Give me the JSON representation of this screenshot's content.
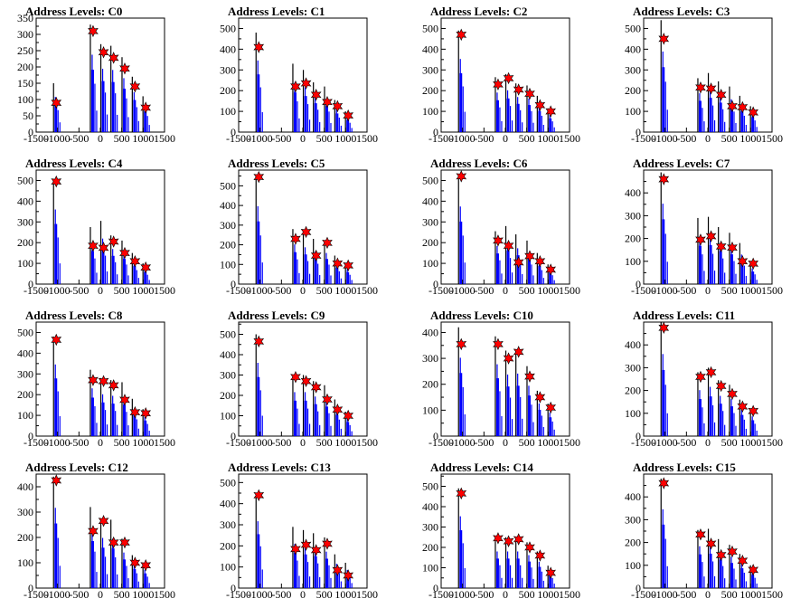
{
  "chart_data": {
    "type": "bar",
    "panel_count": 16,
    "xlim": [
      -1500,
      1500
    ],
    "x_tick_labels": [
      "-1500",
      "-1000",
      "-500",
      "0",
      "500",
      "1000",
      "1500"
    ],
    "colors": {
      "histogram_fill": "#0000ff",
      "histogram_outline": "#000000",
      "marker": "#ff0000"
    },
    "marker_shape": "star",
    "panels": [
      {
        "title": "Address Levels: C0",
        "ylim": [
          0,
          350
        ],
        "y_tick_labels": [
          "0",
          "50",
          "100",
          "150",
          "200",
          "250",
          "300",
          "350"
        ],
        "peak_x": [
          -1030,
          -170,
          75,
          310,
          570,
          810,
          1060
        ],
        "peak_y": [
          150,
          330,
          270,
          265,
          230,
          170,
          110
        ],
        "markers": [
          [
            -1030,
            90
          ],
          [
            -170,
            310
          ],
          [
            75,
            245
          ],
          [
            310,
            228
          ],
          [
            570,
            195
          ],
          [
            810,
            140
          ],
          [
            1060,
            75
          ]
        ]
      },
      {
        "title": "Address Levels: C1",
        "ylim": [
          0,
          550
        ],
        "y_tick_labels": [
          "0",
          "100",
          "200",
          "300",
          "400",
          "500"
        ],
        "peak_x": [
          -1030,
          -170,
          75,
          310,
          570,
          810,
          1060
        ],
        "peak_y": [
          480,
          330,
          300,
          240,
          220,
          155,
          100
        ],
        "markers": [
          [
            -1030,
            410
          ],
          [
            -170,
            220
          ],
          [
            75,
            235
          ],
          [
            310,
            180
          ],
          [
            570,
            145
          ],
          [
            810,
            125
          ],
          [
            1060,
            80
          ]
        ]
      },
      {
        "title": "Address Levels: C2",
        "ylim": [
          0,
          550
        ],
        "y_tick_labels": [
          "0",
          "100",
          "200",
          "300",
          "400",
          "500"
        ],
        "peak_x": [
          -1030,
          -170,
          75,
          310,
          570,
          810,
          1060
        ],
        "peak_y": [
          490,
          265,
          280,
          235,
          225,
          175,
          115
        ],
        "markers": [
          [
            -1030,
            470
          ],
          [
            -170,
            230
          ],
          [
            75,
            260
          ],
          [
            310,
            205
          ],
          [
            570,
            185
          ],
          [
            810,
            130
          ],
          [
            1060,
            100
          ]
        ]
      },
      {
        "title": "Address Levels: C3",
        "ylim": [
          0,
          550
        ],
        "y_tick_labels": [
          "0",
          "100",
          "200",
          "300",
          "400",
          "500"
        ],
        "peak_x": [
          -1030,
          -170,
          75,
          310,
          570,
          810,
          1060
        ],
        "peak_y": [
          540,
          260,
          285,
          245,
          220,
          175,
          125
        ],
        "markers": [
          [
            -1030,
            450
          ],
          [
            -170,
            215
          ],
          [
            75,
            210
          ],
          [
            310,
            180
          ],
          [
            570,
            125
          ],
          [
            810,
            120
          ],
          [
            1060,
            95
          ]
        ]
      },
      {
        "title": "Address Levels: C4",
        "ylim": [
          0,
          550
        ],
        "y_tick_labels": [
          "0",
          "100",
          "200",
          "300",
          "400",
          "500"
        ],
        "peak_x": [
          -1030,
          -170,
          75,
          310,
          570,
          810,
          1060
        ],
        "peak_y": [
          500,
          275,
          305,
          235,
          210,
          150,
          100
        ],
        "markers": [
          [
            -1030,
            495
          ],
          [
            -170,
            185
          ],
          [
            75,
            175
          ],
          [
            310,
            205
          ],
          [
            570,
            150
          ],
          [
            810,
            110
          ],
          [
            1060,
            80
          ]
        ]
      },
      {
        "title": "Address Levels: C5",
        "ylim": [
          0,
          580
        ],
        "y_tick_labels": [
          "0",
          "100",
          "200",
          "300",
          "400",
          "500"
        ],
        "peak_x": [
          -1030,
          -170,
          75,
          310,
          570,
          810,
          1060
        ],
        "peak_y": [
          550,
          280,
          260,
          230,
          220,
          145,
          105
        ],
        "markers": [
          [
            -1030,
            545
          ],
          [
            -170,
            230
          ],
          [
            75,
            265
          ],
          [
            310,
            145
          ],
          [
            570,
            210
          ],
          [
            810,
            105
          ],
          [
            1060,
            95
          ]
        ]
      },
      {
        "title": "Address Levels: C6",
        "ylim": [
          0,
          550
        ],
        "y_tick_labels": [
          "0",
          "100",
          "200",
          "300",
          "400",
          "500"
        ],
        "peak_x": [
          -1030,
          -170,
          75,
          310,
          570,
          810,
          1060
        ],
        "peak_y": [
          520,
          255,
          280,
          240,
          210,
          150,
          95
        ],
        "markers": [
          [
            -1030,
            520
          ],
          [
            -170,
            210
          ],
          [
            75,
            185
          ],
          [
            310,
            105
          ],
          [
            570,
            135
          ],
          [
            810,
            110
          ],
          [
            1060,
            70
          ]
        ]
      },
      {
        "title": "Address Levels: C7",
        "ylim": [
          0,
          500
        ],
        "y_tick_labels": [
          "0",
          "100",
          "200",
          "300",
          "400"
        ],
        "peak_x": [
          -1030,
          -170,
          75,
          310,
          570,
          810,
          1060
        ],
        "peak_y": [
          490,
          290,
          295,
          250,
          225,
          180,
          95
        ],
        "markers": [
          [
            -1030,
            460
          ],
          [
            -170,
            195
          ],
          [
            75,
            210
          ],
          [
            310,
            165
          ],
          [
            570,
            160
          ],
          [
            810,
            100
          ],
          [
            1060,
            90
          ]
        ]
      },
      {
        "title": "Address Levels: C8",
        "ylim": [
          0,
          550
        ],
        "y_tick_labels": [
          "0",
          "100",
          "200",
          "300",
          "400",
          "500"
        ],
        "peak_x": [
          -1030,
          -170,
          75,
          310,
          570,
          810,
          1060
        ],
        "peak_y": [
          480,
          320,
          280,
          270,
          260,
          180,
          130
        ],
        "markers": [
          [
            -1030,
            465
          ],
          [
            -170,
            270
          ],
          [
            75,
            265
          ],
          [
            310,
            245
          ],
          [
            570,
            175
          ],
          [
            810,
            115
          ],
          [
            1060,
            110
          ]
        ]
      },
      {
        "title": "Address Levels: C9",
        "ylim": [
          0,
          560
        ],
        "y_tick_labels": [
          "0",
          "100",
          "200",
          "300",
          "400",
          "500"
        ],
        "peak_x": [
          -1030,
          -170,
          75,
          310,
          570,
          810,
          1060
        ],
        "peak_y": [
          500,
          300,
          300,
          270,
          250,
          180,
          120
        ],
        "markers": [
          [
            -1030,
            465
          ],
          [
            -170,
            290
          ],
          [
            75,
            270
          ],
          [
            310,
            240
          ],
          [
            570,
            180
          ],
          [
            810,
            130
          ],
          [
            1060,
            100
          ]
        ]
      },
      {
        "title": "Address Levels: C10",
        "ylim": [
          0,
          440
        ],
        "y_tick_labels": [
          "0",
          "100",
          "200",
          "300",
          "400"
        ],
        "peak_x": [
          -1030,
          -170,
          75,
          310,
          570,
          810,
          1060
        ],
        "peak_y": [
          420,
          385,
          330,
          335,
          270,
          175,
          125
        ],
        "markers": [
          [
            -1030,
            355
          ],
          [
            -170,
            355
          ],
          [
            75,
            300
          ],
          [
            310,
            325
          ],
          [
            570,
            230
          ],
          [
            810,
            150
          ],
          [
            1060,
            110
          ]
        ]
      },
      {
        "title": "Address Levels: C11",
        "ylim": [
          0,
          500
        ],
        "y_tick_labels": [
          "0",
          "100",
          "200",
          "300",
          "400"
        ],
        "peak_x": [
          -1030,
          -170,
          75,
          310,
          570,
          810,
          1060
        ],
        "peak_y": [
          500,
          280,
          300,
          245,
          225,
          160,
          120
        ],
        "markers": [
          [
            -1030,
            475
          ],
          [
            -170,
            260
          ],
          [
            75,
            280
          ],
          [
            310,
            220
          ],
          [
            570,
            185
          ],
          [
            810,
            130
          ],
          [
            1060,
            110
          ]
        ]
      },
      {
        "title": "Address Levels: C12",
        "ylim": [
          0,
          450
        ],
        "y_tick_labels": [
          "0",
          "100",
          "200",
          "300",
          "400"
        ],
        "peak_x": [
          -1030,
          -170,
          75,
          310,
          570,
          810,
          1060
        ],
        "peak_y": [
          440,
          320,
          275,
          270,
          195,
          130,
          100
        ],
        "markers": [
          [
            -1030,
            425
          ],
          [
            -170,
            225
          ],
          [
            75,
            265
          ],
          [
            310,
            180
          ],
          [
            570,
            180
          ],
          [
            810,
            100
          ],
          [
            1060,
            90
          ]
        ]
      },
      {
        "title": "Address Levels: C13",
        "ylim": [
          0,
          540
        ],
        "y_tick_labels": [
          "0",
          "100",
          "200",
          "300",
          "400",
          "500"
        ],
        "peak_x": [
          -1030,
          -170,
          75,
          310,
          570,
          810,
          1060
        ],
        "peak_y": [
          440,
          290,
          275,
          260,
          240,
          160,
          120
        ],
        "markers": [
          [
            -1030,
            440
          ],
          [
            -170,
            185
          ],
          [
            75,
            205
          ],
          [
            310,
            180
          ],
          [
            570,
            210
          ],
          [
            810,
            85
          ],
          [
            1060,
            60
          ]
        ]
      },
      {
        "title": "Address Levels: C14",
        "ylim": [
          0,
          560
        ],
        "y_tick_labels": [
          "0",
          "100",
          "200",
          "300",
          "400",
          "500"
        ],
        "peak_x": [
          -1030,
          -170,
          75,
          310,
          570,
          810,
          1060
        ],
        "peak_y": [
          490,
          250,
          250,
          250,
          225,
          180,
          110
        ],
        "markers": [
          [
            -1030,
            465
          ],
          [
            -170,
            245
          ],
          [
            75,
            230
          ],
          [
            310,
            240
          ],
          [
            570,
            200
          ],
          [
            810,
            160
          ],
          [
            1060,
            75
          ]
        ]
      },
      {
        "title": "Address Levels: C15",
        "ylim": [
          0,
          500
        ],
        "y_tick_labels": [
          "0",
          "100",
          "200",
          "300",
          "400"
        ],
        "peak_x": [
          -1030,
          -170,
          75,
          310,
          570,
          810,
          1060
        ],
        "peak_y": [
          480,
          255,
          260,
          215,
          190,
          150,
          100
        ],
        "markers": [
          [
            -1030,
            460
          ],
          [
            -170,
            235
          ],
          [
            75,
            195
          ],
          [
            310,
            145
          ],
          [
            570,
            160
          ],
          [
            810,
            120
          ],
          [
            1060,
            80
          ]
        ]
      }
    ]
  }
}
